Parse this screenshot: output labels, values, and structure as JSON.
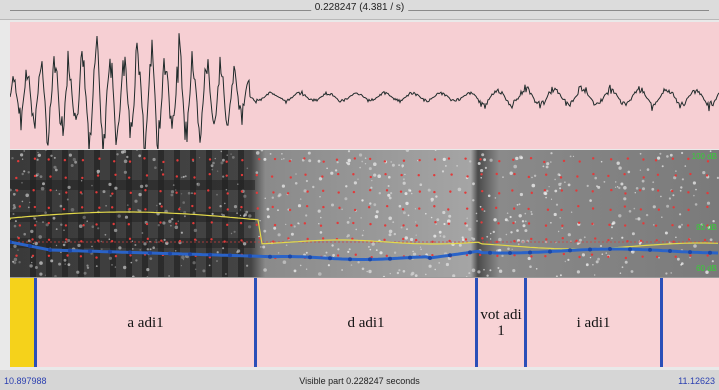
{
  "top_bar": {
    "selection_label": "0.228247 (4.381 / s)"
  },
  "spectrogram": {
    "axis_labels": [
      "100 dB",
      "80 dB",
      "60 dB"
    ]
  },
  "tier": {
    "segments": [
      {
        "label": "a adi1"
      },
      {
        "label": "d adi1"
      },
      {
        "label": "vot adi\n1"
      },
      {
        "label": "i adi1"
      }
    ]
  },
  "bottom_bar": {
    "start_time": "10.897988",
    "visible_part": "Visible part 0.228247 seconds",
    "end_time": "11.12623"
  },
  "colors": {
    "waveform_bg": "#f6cfd3",
    "tier_bg": "#f8d3d6",
    "boundary": "#2b4fb8",
    "pitch": "#2a63c8",
    "intensity": "#e3d94a",
    "highlight": "#f5d21b"
  }
}
